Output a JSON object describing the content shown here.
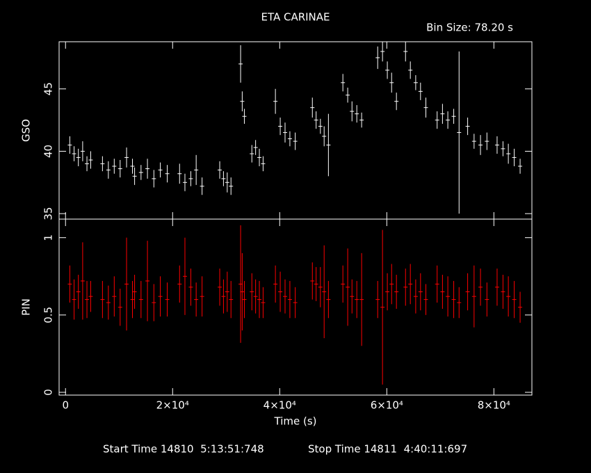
{
  "chart_data": [
    {
      "type": "errorbar",
      "title": "ETA CARINAE",
      "subtitle": "Bin Size: 78.20 s",
      "ylabel": "GSO",
      "color": "#ffffff",
      "x": [
        800,
        1600,
        2400,
        3200,
        4000,
        4700,
        6900,
        8000,
        9100,
        10200,
        11400,
        12500,
        12900,
        14100,
        15300,
        16500,
        17700,
        19000,
        21300,
        22300,
        23400,
        24400,
        25500,
        28800,
        29500,
        30200,
        30900,
        32700,
        33000,
        33400,
        34800,
        35500,
        36200,
        36900,
        39200,
        40100,
        41000,
        41900,
        42900,
        46100,
        46800,
        47600,
        48300,
        49100,
        51800,
        52700,
        53500,
        54400,
        55300,
        58300,
        59200,
        60100,
        60900,
        61800,
        63500,
        64400,
        65400,
        66300,
        67300,
        69400,
        70400,
        71400,
        72500,
        73500,
        75100,
        76300,
        77500,
        78700,
        80600,
        81700,
        82700,
        83800,
        84900
      ],
      "values": [
        40.5,
        39.8,
        39.5,
        40,
        39,
        39.3,
        39,
        38.5,
        38.8,
        38.6,
        39.5,
        38.8,
        38,
        38.3,
        38.6,
        37.8,
        38.5,
        38.2,
        38.2,
        37.5,
        37.8,
        38.5,
        37.2,
        38.5,
        37.8,
        37.5,
        37.2,
        47,
        44,
        42.8,
        39.8,
        40.3,
        39.5,
        39,
        44,
        42,
        41.5,
        41,
        40.8,
        43.5,
        42.5,
        42,
        41.2,
        40.5,
        45.5,
        44.5,
        43.2,
        43,
        42.5,
        47.5,
        48,
        46.5,
        45.5,
        44,
        48,
        46.5,
        45.5,
        44.8,
        43.5,
        42.5,
        43,
        42.5,
        42.8,
        41.5,
        42,
        40.8,
        40.5,
        40.8,
        40.5,
        40.2,
        39.8,
        39.5,
        38.8
      ],
      "errors": [
        0.7,
        0.6,
        0.7,
        0.8,
        0.6,
        0.7,
        0.6,
        0.7,
        0.6,
        0.7,
        0.8,
        0.6,
        0.7,
        0.6,
        0.8,
        0.7,
        0.6,
        0.7,
        0.8,
        0.7,
        0.6,
        1.2,
        0.7,
        0.7,
        0.6,
        0.8,
        0.7,
        1.5,
        0.8,
        0.6,
        0.7,
        0.6,
        0.7,
        0.6,
        1.0,
        0.7,
        0.8,
        0.6,
        0.7,
        0.8,
        0.7,
        0.6,
        0.8,
        2.5,
        0.7,
        0.6,
        0.8,
        0.7,
        0.6,
        0.9,
        0.8,
        0.7,
        0.8,
        0.7,
        0.8,
        0.7,
        0.6,
        0.7,
        0.8,
        0.7,
        0.8,
        0.7,
        0.6,
        6.5,
        0.7,
        0.6,
        0.8,
        0.7,
        0.7,
        0.6,
        0.8,
        0.7,
        0.6
      ],
      "ylim": [
        34.56,
        48.78
      ],
      "yticks": [
        35,
        40,
        45
      ]
    },
    {
      "type": "errorbar",
      "ylabel": "PIN",
      "xlabel": "Time (s)",
      "color": "#ff0000",
      "x": [
        800,
        1600,
        2400,
        3200,
        4000,
        4700,
        6900,
        8000,
        9100,
        10200,
        11400,
        12500,
        12900,
        14100,
        15300,
        16500,
        17700,
        19000,
        21300,
        22300,
        23400,
        24400,
        25500,
        28800,
        29500,
        30200,
        30900,
        32700,
        33000,
        33400,
        34800,
        35500,
        36200,
        36900,
        39200,
        40100,
        41000,
        41900,
        42900,
        46100,
        46800,
        47600,
        48300,
        49100,
        51800,
        52700,
        53500,
        54400,
        55300,
        58300,
        59200,
        60100,
        60900,
        61800,
        63500,
        64400,
        65400,
        66300,
        67300,
        69400,
        70400,
        71400,
        72500,
        73500,
        75100,
        76300,
        77500,
        78700,
        80600,
        81700,
        82700,
        83800,
        84900
      ],
      "values": [
        0.7,
        0.6,
        0.65,
        0.72,
        0.6,
        0.62,
        0.6,
        0.58,
        0.62,
        0.55,
        0.7,
        0.6,
        0.65,
        0.6,
        0.72,
        0.58,
        0.62,
        0.6,
        0.7,
        0.75,
        0.68,
        0.6,
        0.62,
        0.68,
        0.62,
        0.65,
        0.6,
        0.7,
        0.65,
        0.6,
        0.65,
        0.62,
        0.6,
        0.58,
        0.7,
        0.65,
        0.62,
        0.6,
        0.58,
        0.72,
        0.7,
        0.68,
        0.65,
        0.6,
        0.7,
        0.68,
        0.62,
        0.6,
        0.6,
        0.6,
        0.55,
        0.65,
        0.7,
        0.65,
        0.68,
        0.7,
        0.62,
        0.65,
        0.6,
        0.7,
        0.65,
        0.62,
        0.6,
        0.58,
        0.65,
        0.62,
        0.68,
        0.6,
        0.68,
        0.65,
        0.62,
        0.6,
        0.55
      ],
      "errors": [
        0.12,
        0.13,
        0.11,
        0.25,
        0.12,
        0.1,
        0.12,
        0.11,
        0.13,
        0.12,
        0.3,
        0.12,
        0.11,
        0.12,
        0.26,
        0.12,
        0.13,
        0.11,
        0.12,
        0.25,
        0.12,
        0.11,
        0.13,
        0.12,
        0.11,
        0.13,
        0.12,
        0.38,
        0.25,
        0.12,
        0.12,
        0.11,
        0.12,
        0.1,
        0.12,
        0.13,
        0.11,
        0.12,
        0.1,
        0.12,
        0.11,
        0.13,
        0.3,
        0.12,
        0.12,
        0.25,
        0.11,
        0.12,
        0.3,
        0.12,
        0.5,
        0.12,
        0.13,
        0.11,
        0.12,
        0.13,
        0.11,
        0.12,
        0.1,
        0.12,
        0.11,
        0.13,
        0.12,
        0.1,
        0.12,
        0.2,
        0.12,
        0.11,
        0.12,
        0.11,
        0.13,
        0.12,
        0.1
      ],
      "ylim": [
        -0.018,
        1.12
      ],
      "yticks": [
        0,
        0.5,
        1
      ],
      "xlim": [
        -1200,
        87100
      ],
      "xticks": [
        0,
        {
          "value": 20000,
          "label": "2×10⁴"
        },
        {
          "value": 40000,
          "label": "4×10⁴"
        },
        {
          "value": 60000,
          "label": "6×10⁴"
        },
        {
          "value": 80000,
          "label": "8×10⁴"
        }
      ],
      "footer_start": "Start Time 14810  5:13:51:748",
      "footer_stop": "Stop Time 14811  4:40:11:697"
    }
  ]
}
